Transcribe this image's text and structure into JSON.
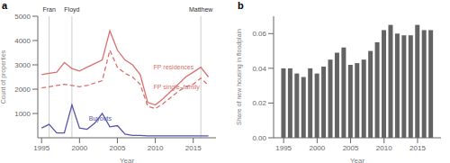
{
  "chart_data": [
    {
      "type": "line",
      "title": "a",
      "x_label": "Year",
      "y_label": "Count of properties",
      "x": [
        1995,
        1996,
        1997,
        1998,
        1999,
        2000,
        2001,
        2002,
        2003,
        2004,
        2005,
        2006,
        2007,
        2008,
        2009,
        2010,
        2011,
        2012,
        2013,
        2014,
        2015,
        2016,
        2017
      ],
      "xlim": [
        1994.5,
        2018
      ],
      "xticks": [
        1995,
        2000,
        2005,
        2010,
        2015
      ],
      "ylim": [
        0,
        5000
      ],
      "yticks": [
        1000,
        2000,
        3000,
        4000,
        5000
      ],
      "series": [
        {
          "name": "FP residences",
          "color": "#d9706e",
          "line_style": "solid",
          "values": [
            2600,
            2650,
            2700,
            3100,
            2850,
            2750,
            2900,
            3050,
            3200,
            4400,
            3600,
            3200,
            3000,
            2600,
            1450,
            1350,
            1600,
            1900,
            2200,
            2500,
            2700,
            2900,
            2500
          ]
        },
        {
          "name": "FP single–family",
          "color": "#d9706e",
          "line_style": "dashed",
          "values": [
            2050,
            2100,
            2150,
            2200,
            2150,
            2100,
            2150,
            2250,
            2350,
            3600,
            2900,
            2650,
            2500,
            2200,
            1300,
            1200,
            1400,
            1650,
            1900,
            2100,
            2200,
            2450,
            2150
          ]
        },
        {
          "name": "Buyouts",
          "color": "#5555aa",
          "line_style": "solid",
          "values": [
            400,
            550,
            200,
            200,
            1350,
            400,
            350,
            600,
            1000,
            450,
            500,
            150,
            100,
            100,
            80,
            80,
            80,
            80,
            80,
            80,
            80,
            80,
            80
          ]
        }
      ],
      "annotations": [
        {
          "text": "Fran",
          "x": 1996
        },
        {
          "text": "Floyd",
          "x": 1999
        },
        {
          "text": "Matthew",
          "x": 2016
        }
      ]
    },
    {
      "type": "bar",
      "title": "b",
      "x_label": "Year",
      "y_label": "Share of new housing in floodplain",
      "x": [
        1995,
        1996,
        1997,
        1998,
        1999,
        2000,
        2001,
        2002,
        2003,
        2004,
        2005,
        2006,
        2007,
        2008,
        2009,
        2010,
        2011,
        2012,
        2013,
        2014,
        2015,
        2016,
        2017
      ],
      "values": [
        0.04,
        0.04,
        0.037,
        0.035,
        0.04,
        0.037,
        0.041,
        0.045,
        0.049,
        0.052,
        0.042,
        0.043,
        0.045,
        0.05,
        0.055,
        0.062,
        0.065,
        0.06,
        0.059,
        0.059,
        0.065,
        0.062,
        0.062
      ],
      "color": "#636363",
      "xlim": [
        1993.5,
        2018.5
      ],
      "xticks": [
        1995,
        2000,
        2005,
        2010,
        2015
      ],
      "ylim": [
        0,
        0.07
      ],
      "yticks": [
        {
          "value": 0.0,
          "label": "0.00"
        },
        {
          "value": 0.02,
          "label": "0.02"
        },
        {
          "value": 0.04,
          "label": "0.04"
        },
        {
          "value": 0.06,
          "label": "0.06"
        }
      ]
    }
  ]
}
